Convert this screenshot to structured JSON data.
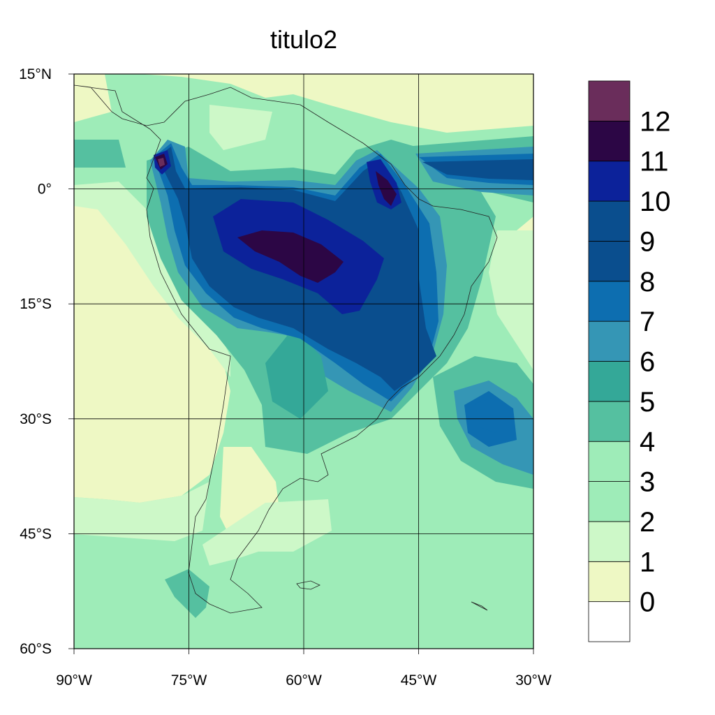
{
  "title": "titulo2",
  "map": {
    "lon_ticks": [
      "90°W",
      "75°W",
      "60°W",
      "45°W",
      "30°W"
    ],
    "lat_ticks": [
      "15°N",
      "0°",
      "15°S",
      "30°S",
      "45°S",
      "60°S"
    ],
    "lon_range": [
      -90,
      -30
    ],
    "lat_range": [
      -60,
      15
    ],
    "grid": true
  },
  "colorbar": {
    "labels": [
      "0",
      "1",
      "2",
      "3",
      "4",
      "5",
      "6",
      "7",
      "8",
      "9",
      "10",
      "11",
      "12"
    ],
    "colors": [
      "#ffffff",
      "#eef8c4",
      "#cdf8c8",
      "#9eecb8",
      "#9eecb8",
      "#55c0a0",
      "#34a898",
      "#3596b5",
      "#0d6eb0",
      "#0a4e8e",
      "#0a4e8e",
      "#0c229a",
      "#2c0645",
      "#6a2d5b"
    ]
  }
}
